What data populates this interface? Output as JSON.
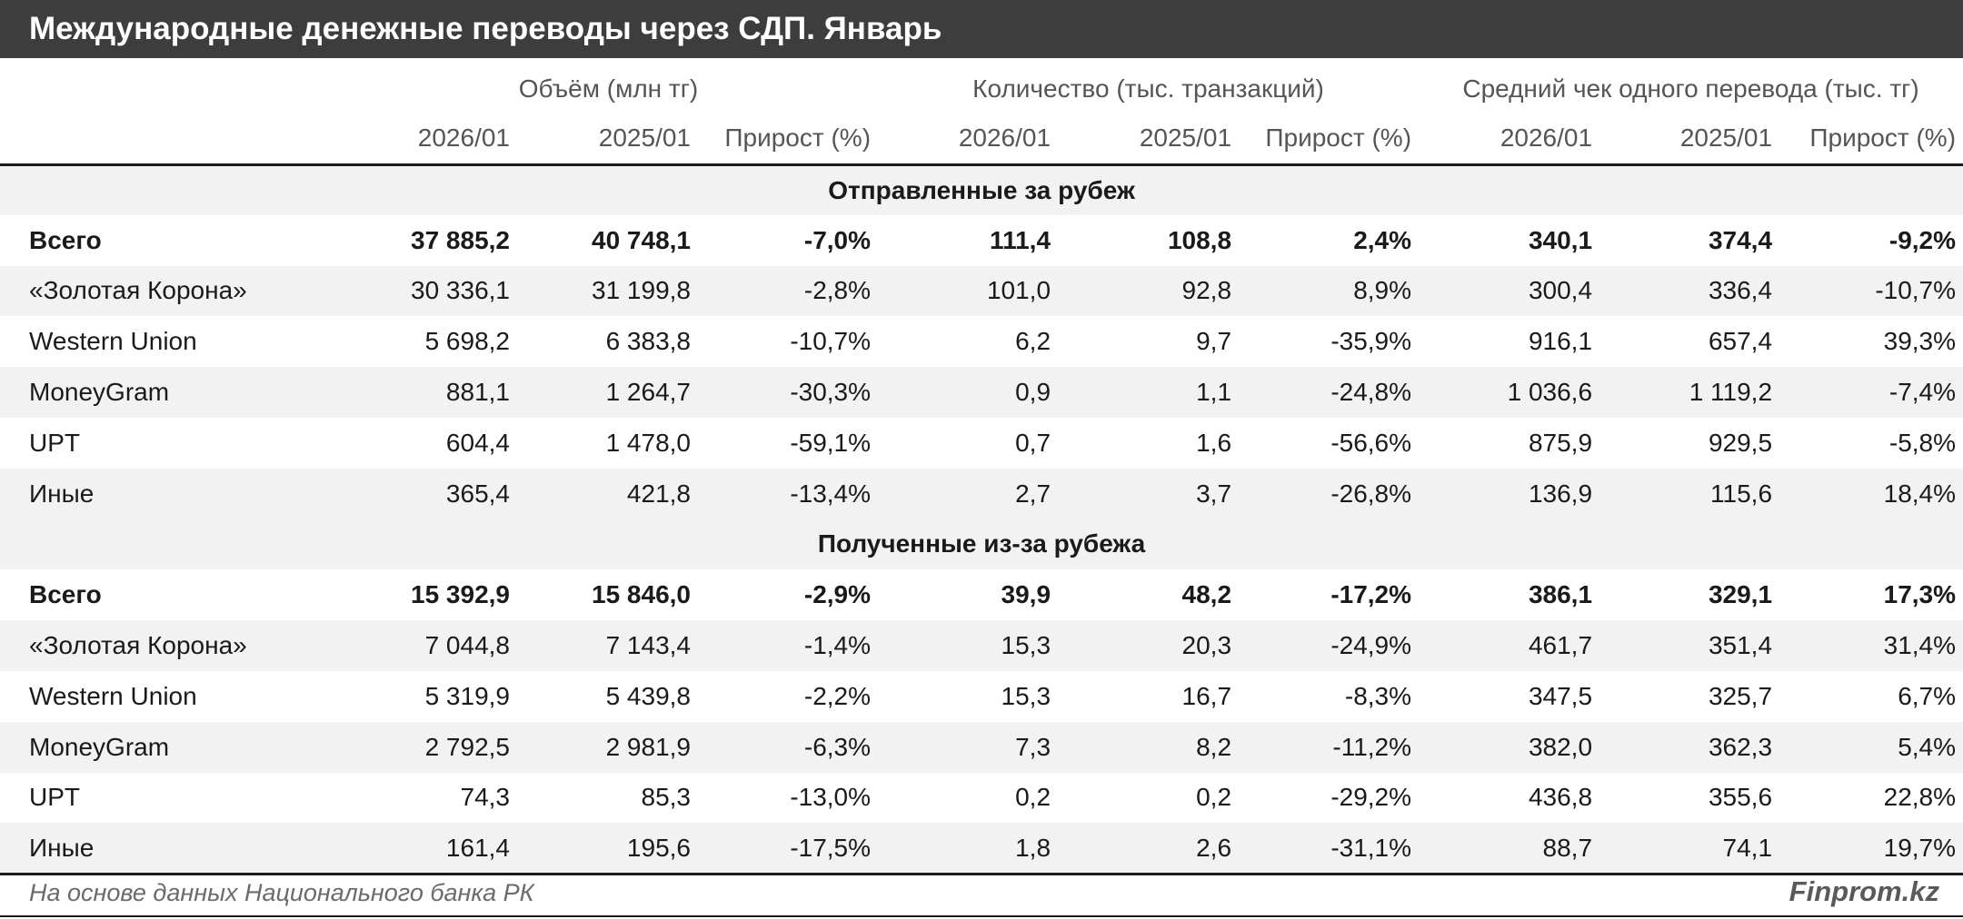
{
  "title": "Международные денежные переводы через СДП. Январь",
  "footer": {
    "source": "На основе данных Национального банка РК",
    "brand": "Finprom.kz"
  },
  "chart_data": {
    "type": "table",
    "title": "Международные денежные переводы через СДП. Январь",
    "column_groups": [
      "Объём (млн тг)",
      "Количество (тыс. транзакций)",
      "Средний чек одного перевода (тыс. тг)"
    ],
    "column_headers": [
      "2026/01",
      "2025/01",
      "Прирост (%)",
      "2026/01",
      "2025/01",
      "Прирост (%)",
      "2026/01",
      "2025/01",
      "Прирост (%)"
    ],
    "sections": [
      {
        "title": "Отправленные за рубеж",
        "rows": [
          {
            "name": "Всего",
            "cells": [
              "37 885,2",
              "40 748,1",
              "-7,0%",
              "111,4",
              "108,8",
              "2,4%",
              "340,1",
              "374,4",
              "-9,2%"
            ]
          },
          {
            "name": "«Золотая Корона»",
            "cells": [
              "30 336,1",
              "31 199,8",
              "-2,8%",
              "101,0",
              "92,8",
              "8,9%",
              "300,4",
              "336,4",
              "-10,7%"
            ]
          },
          {
            "name": "Western Union",
            "cells": [
              "5 698,2",
              "6 383,8",
              "-10,7%",
              "6,2",
              "9,7",
              "-35,9%",
              "916,1",
              "657,4",
              "39,3%"
            ]
          },
          {
            "name": "MoneyGram",
            "cells": [
              "881,1",
              "1 264,7",
              "-30,3%",
              "0,9",
              "1,1",
              "-24,8%",
              "1 036,6",
              "1 119,2",
              "-7,4%"
            ]
          },
          {
            "name": "UPT",
            "cells": [
              "604,4",
              "1 478,0",
              "-59,1%",
              "0,7",
              "1,6",
              "-56,6%",
              "875,9",
              "929,5",
              "-5,8%"
            ]
          },
          {
            "name": "Иные",
            "cells": [
              "365,4",
              "421,8",
              "-13,4%",
              "2,7",
              "3,7",
              "-26,8%",
              "136,9",
              "115,6",
              "18,4%"
            ]
          }
        ]
      },
      {
        "title": "Полученные из-за рубежа",
        "rows": [
          {
            "name": "Всего",
            "cells": [
              "15 392,9",
              "15 846,0",
              "-2,9%",
              "39,9",
              "48,2",
              "-17,2%",
              "386,1",
              "329,1",
              "17,3%"
            ]
          },
          {
            "name": "«Золотая Корона»",
            "cells": [
              "7 044,8",
              "7 143,4",
              "-1,4%",
              "15,3",
              "20,3",
              "-24,9%",
              "461,7",
              "351,4",
              "31,4%"
            ]
          },
          {
            "name": "Western Union",
            "cells": [
              "5 319,9",
              "5 439,8",
              "-2,2%",
              "15,3",
              "16,7",
              "-8,3%",
              "347,5",
              "325,7",
              "6,7%"
            ]
          },
          {
            "name": "MoneyGram",
            "cells": [
              "2 792,5",
              "2 981,9",
              "-6,3%",
              "7,3",
              "8,2",
              "-11,2%",
              "382,0",
              "362,3",
              "5,4%"
            ]
          },
          {
            "name": "UPT",
            "cells": [
              "74,3",
              "85,3",
              "-13,0%",
              "0,2",
              "0,2",
              "-29,2%",
              "436,8",
              "355,6",
              "22,8%"
            ]
          },
          {
            "name": "Иные",
            "cells": [
              "161,4",
              "195,6",
              "-17,5%",
              "1,8",
              "2,6",
              "-31,1%",
              "88,7",
              "74,1",
              "19,7%"
            ]
          }
        ]
      }
    ]
  }
}
